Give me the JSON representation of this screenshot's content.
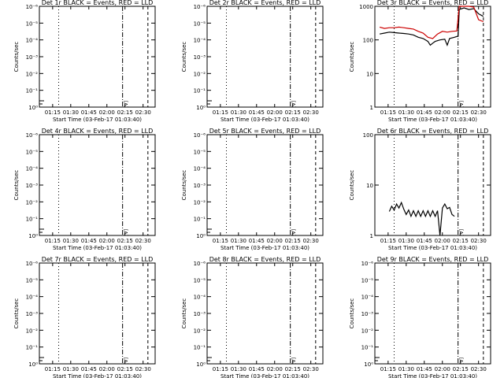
{
  "chart_data": [
    {
      "type": "line",
      "title": "Det 1r BLACK = Events, RED = LLD",
      "ylabel": "Counts/sec",
      "xlabel": "Start Time (03-Feb-17 01:03:40)",
      "yscale": "log",
      "ylim": [
        1,
        1000
      ],
      "xlim": [
        "01:04",
        "02:40"
      ],
      "yticks": [
        "10⁰",
        "10⁻¹",
        "10⁻²",
        "10⁻³",
        "10⁻⁴",
        "10⁻⁵",
        "10⁻⁶"
      ],
      "xticks": [
        "01:15",
        "01:30",
        "01:45",
        "02:00",
        "02:15",
        "02:30"
      ],
      "markers": [
        {
          "time": "01:20",
          "style": "dotted"
        },
        {
          "time": "02:13",
          "style": "dash-dot"
        },
        {
          "time": "02:34",
          "style": "dashed"
        }
      ],
      "annotation": "[A]",
      "series": []
    },
    {
      "type": "line",
      "title": "Det 2r BLACK = Events, RED = LLD",
      "ylabel": "Counts/sec",
      "xlabel": "Start Time (03-Feb-17 01:03:40)",
      "yscale": "log",
      "ylim": [
        1,
        1000
      ],
      "xlim": [
        "01:04",
        "02:40"
      ],
      "yticks": [
        "10⁰",
        "10⁻¹",
        "10⁻²",
        "10⁻³",
        "10⁻⁴",
        "10⁻⁵",
        "10⁻⁶"
      ],
      "xticks": [
        "01:15",
        "01:30",
        "01:45",
        "02:00",
        "02:15",
        "02:30"
      ],
      "markers": [
        {
          "time": "01:20",
          "style": "dotted"
        },
        {
          "time": "02:13",
          "style": "dash-dot"
        },
        {
          "time": "02:34",
          "style": "dashed"
        }
      ],
      "annotation": "[A]",
      "series": []
    },
    {
      "type": "line",
      "title": "Det 3r BLACK = Events, RED = LLD",
      "ylabel": "Counts/sec",
      "xlabel": "Start Time (03-Feb-17 01:03:40)",
      "yscale": "log",
      "ylim": [
        1,
        1000
      ],
      "xlim": [
        "01:04",
        "02:40"
      ],
      "yticks": [
        "1",
        "10",
        "100",
        "1000"
      ],
      "xticks": [
        "01:15",
        "01:30",
        "01:45",
        "02:00",
        "02:15",
        "02:30"
      ],
      "markers": [
        {
          "time": "01:20",
          "style": "dotted"
        },
        {
          "time": "02:13",
          "style": "dash-dot"
        },
        {
          "time": "02:34",
          "style": "dashed"
        }
      ],
      "annotation": "[A]",
      "series": [
        {
          "color": "#000000",
          "points": [
            [
              "01:08",
              150
            ],
            [
              "01:12",
              160
            ],
            [
              "01:16",
              170
            ],
            [
              "01:20",
              165
            ],
            [
              "01:24",
              160
            ],
            [
              "01:28",
              155
            ],
            [
              "01:32",
              150
            ],
            [
              "01:36",
              140
            ],
            [
              "01:40",
              120
            ],
            [
              "01:44",
              110
            ],
            [
              "01:48",
              90
            ],
            [
              "01:50",
              70
            ],
            [
              "01:52",
              80
            ],
            [
              "01:54",
              90
            ],
            [
              "01:58",
              100
            ],
            [
              "02:02",
              105
            ],
            [
              "02:04",
              70
            ],
            [
              "02:06",
              110
            ],
            [
              "02:10",
              120
            ],
            [
              "02:13",
              130
            ],
            [
              "02:14",
              800
            ],
            [
              "02:18",
              900
            ],
            [
              "02:22",
              800
            ],
            [
              "02:26",
              850
            ],
            [
              "02:30",
              600
            ],
            [
              "02:34",
              500
            ]
          ]
        },
        {
          "color": "#cc0000",
          "points": [
            [
              "01:08",
              240
            ],
            [
              "01:12",
              220
            ],
            [
              "01:16",
              230
            ],
            [
              "01:20",
              230
            ],
            [
              "01:24",
              240
            ],
            [
              "01:28",
              230
            ],
            [
              "01:32",
              220
            ],
            [
              "01:36",
              210
            ],
            [
              "01:40",
              180
            ],
            [
              "01:44",
              160
            ],
            [
              "01:48",
              120
            ],
            [
              "01:52",
              110
            ],
            [
              "01:56",
              150
            ],
            [
              "02:00",
              180
            ],
            [
              "02:04",
              170
            ],
            [
              "02:08",
              180
            ],
            [
              "02:12",
              185
            ],
            [
              "02:14",
              1000
            ],
            [
              "02:18",
              1000
            ],
            [
              "02:22",
              1000
            ],
            [
              "02:26",
              950
            ],
            [
              "02:30",
              400
            ],
            [
              "02:34",
              350
            ]
          ]
        }
      ]
    },
    {
      "type": "line",
      "title": "Det 4r BLACK = Events, RED = LLD",
      "ylabel": "Counts/sec",
      "xlabel": "Start Time (03-Feb-17 01:03:40)",
      "yscale": "log",
      "ylim": [
        1,
        1000
      ],
      "xlim": [
        "01:04",
        "02:40"
      ],
      "yticks": [
        "10⁰",
        "10⁻¹",
        "10⁻²",
        "10⁻³",
        "10⁻⁴",
        "10⁻⁵",
        "10⁻⁶"
      ],
      "xticks": [
        "01:15",
        "01:30",
        "01:45",
        "02:00",
        "02:15",
        "02:30"
      ],
      "markers": [
        {
          "time": "01:20",
          "style": "dotted"
        },
        {
          "time": "02:13",
          "style": "dash-dot"
        },
        {
          "time": "02:34",
          "style": "dashed"
        }
      ],
      "annotation": "[A]",
      "series": []
    },
    {
      "type": "line",
      "title": "Det 5r BLACK = Events, RED = LLD",
      "ylabel": "Counts/sec",
      "xlabel": "Start Time (03-Feb-17 01:03:40)",
      "yscale": "log",
      "ylim": [
        1,
        1000
      ],
      "xlim": [
        "01:04",
        "02:40"
      ],
      "yticks": [
        "10⁰",
        "10⁻¹",
        "10⁻²",
        "10⁻³",
        "10⁻⁴",
        "10⁻⁵",
        "10⁻⁶"
      ],
      "xticks": [
        "01:15",
        "01:30",
        "01:45",
        "02:00",
        "02:15",
        "02:30"
      ],
      "markers": [
        {
          "time": "01:20",
          "style": "dotted"
        },
        {
          "time": "02:13",
          "style": "dash-dot"
        },
        {
          "time": "02:34",
          "style": "dashed"
        }
      ],
      "annotation": "[A]",
      "series": []
    },
    {
      "type": "line",
      "title": "Det 6r BLACK = Events, RED = LLD",
      "ylabel": "Counts/sec",
      "xlabel": "Start Time (03-Feb-17 01:03:40)",
      "yscale": "log",
      "ylim": [
        1,
        100
      ],
      "xlim": [
        "01:04",
        "02:40"
      ],
      "yticks": [
        "1",
        "10",
        "100"
      ],
      "xticks": [
        "01:15",
        "01:30",
        "01:45",
        "02:00",
        "02:15",
        "02:30"
      ],
      "markers": [
        {
          "time": "01:20",
          "style": "dotted"
        },
        {
          "time": "02:13",
          "style": "dash-dot"
        },
        {
          "time": "02:34",
          "style": "dashed"
        }
      ],
      "annotation": "[A]",
      "series": [
        {
          "color": "#000000",
          "points": [
            [
              "01:16",
              3
            ],
            [
              "01:18",
              3.8
            ],
            [
              "01:20",
              3.2
            ],
            [
              "01:22",
              4.2
            ],
            [
              "01:24",
              3.5
            ],
            [
              "01:26",
              4.5
            ],
            [
              "01:28",
              3.3
            ],
            [
              "01:30",
              2.6
            ],
            [
              "01:32",
              3.2
            ],
            [
              "01:34",
              2.4
            ],
            [
              "01:36",
              3.1
            ],
            [
              "01:38",
              2.4
            ],
            [
              "01:40",
              3.1
            ],
            [
              "01:42",
              2.4
            ],
            [
              "01:44",
              3.1
            ],
            [
              "01:46",
              2.4
            ],
            [
              "01:48",
              3.1
            ],
            [
              "01:50",
              2.4
            ],
            [
              "01:52",
              3.1
            ],
            [
              "01:54",
              2.4
            ],
            [
              "01:56",
              3.1
            ],
            [
              "01:58",
              1
            ],
            [
              "02:00",
              3.5
            ],
            [
              "02:02",
              4.2
            ],
            [
              "02:04",
              3.4
            ],
            [
              "02:06",
              3.6
            ],
            [
              "02:08",
              2.6
            ],
            [
              "02:10",
              2.4
            ]
          ]
        }
      ]
    },
    {
      "type": "line",
      "title": "Det 7r BLACK = Events, RED = LLD",
      "ylabel": "Counts/sec",
      "xlabel": "Start Time (03-Feb-17 01:03:40)",
      "yscale": "log",
      "ylim": [
        1,
        1000
      ],
      "xlim": [
        "01:04",
        "02:40"
      ],
      "yticks": [
        "10⁰",
        "10⁻¹",
        "10⁻²",
        "10⁻³",
        "10⁻⁴",
        "10⁻⁵",
        "10⁻⁶"
      ],
      "xticks": [
        "01:15",
        "01:30",
        "01:45",
        "02:00",
        "02:15",
        "02:30"
      ],
      "markers": [
        {
          "time": "01:20",
          "style": "dotted"
        },
        {
          "time": "02:13",
          "style": "dash-dot"
        },
        {
          "time": "02:34",
          "style": "dashed"
        }
      ],
      "annotation": "[A]",
      "series": []
    },
    {
      "type": "line",
      "title": "Det 8r BLACK = Events, RED = LLD",
      "ylabel": "Counts/sec",
      "xlabel": "Start Time (03-Feb-17 01:03:40)",
      "yscale": "log",
      "ylim": [
        1,
        1000
      ],
      "xlim": [
        "01:04",
        "02:40"
      ],
      "yticks": [
        "10⁰",
        "10⁻¹",
        "10⁻²",
        "10⁻³",
        "10⁻⁴",
        "10⁻⁵",
        "10⁻⁶"
      ],
      "xticks": [
        "01:15",
        "01:30",
        "01:45",
        "02:00",
        "02:15",
        "02:30"
      ],
      "markers": [
        {
          "time": "01:20",
          "style": "dotted"
        },
        {
          "time": "02:13",
          "style": "dash-dot"
        },
        {
          "time": "02:34",
          "style": "dashed"
        }
      ],
      "annotation": "[A]",
      "series": []
    },
    {
      "type": "line",
      "title": "Det 9r BLACK = Events, RED = LLD",
      "ylabel": "Counts/sec",
      "xlabel": "Start Time (03-Feb-17 01:03:40)",
      "yscale": "log",
      "ylim": [
        1,
        1000
      ],
      "xlim": [
        "01:04",
        "02:40"
      ],
      "yticks": [
        "10⁰",
        "10⁻¹",
        "10⁻²",
        "10⁻³",
        "10⁻⁴",
        "10⁻⁵",
        "10⁻⁶"
      ],
      "xticks": [
        "01:15",
        "01:30",
        "01:45",
        "02:00",
        "02:15",
        "02:30"
      ],
      "markers": [
        {
          "time": "01:20",
          "style": "dotted"
        },
        {
          "time": "02:13",
          "style": "dash-dot"
        },
        {
          "time": "02:34",
          "style": "dashed"
        }
      ],
      "annotation": "[A]",
      "series": []
    }
  ]
}
